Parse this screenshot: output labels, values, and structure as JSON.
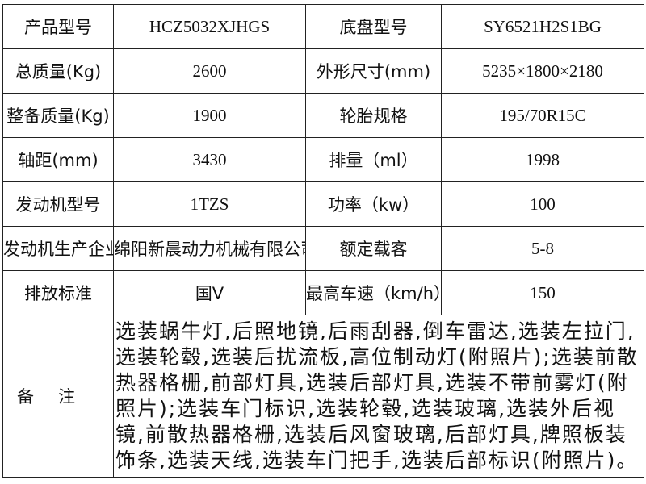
{
  "rows": [
    {
      "label1": "产品型号",
      "value1": "HCZ5032XJHGS",
      "label2": "底盘型号",
      "value2": "SY6521H2S1BG"
    },
    {
      "label1": "总质量(Kg)",
      "value1": "2600",
      "label2": "外形尺寸(mm)",
      "value2": "5235×1800×2180"
    },
    {
      "label1": "整备质量(Kg)",
      "value1": "1900",
      "label2": "轮胎规格",
      "value2": "195/70R15C"
    },
    {
      "label1": "轴距(mm)",
      "value1": "3430",
      "label2": "排量（ml）",
      "value2": "1998"
    },
    {
      "label1": "发动机型号",
      "value1": "1TZS",
      "label2": "功率（kw）",
      "value2": "100"
    },
    {
      "label1": "发动机生产企业",
      "value1": "绵阳新晨动力机械有限公司",
      "label2": "额定载客",
      "value2": "5-8"
    },
    {
      "label1": "排放标准",
      "value1": "国Ⅴ",
      "label2": "最高车速（km/h）",
      "value2": "150"
    }
  ],
  "remarks": {
    "label": "备注",
    "text": "选装蜗牛灯,后照地镜,后雨刮器,倒车雷达,选装左拉门,选装轮毂,选装后扰流板,高位制动灯(附照片);选装前散热器格栅,前部灯具,选装后部灯具,选装不带前雾灯(附照片);选装车门标识,选装轮毂,选装玻璃,选装外后视镜,前散热器格栅,选装后风窗玻璃,后部灯具,牌照板装饰条,选装天线,选装车门把手,选装后部标识(附照片)。"
  }
}
